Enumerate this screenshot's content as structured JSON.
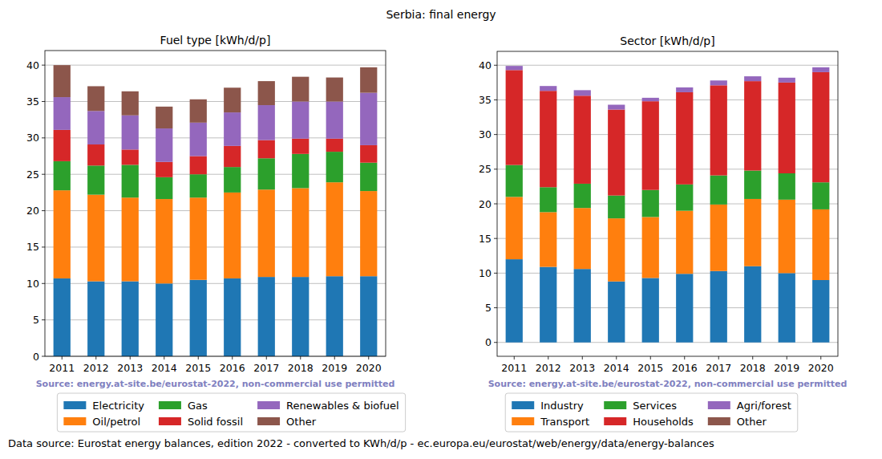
{
  "title": "Serbia: final energy",
  "source": "Data source: Eurostat energy balances, edition 2022 - converted to KWh/d/p - ec.europa.eu/eurostat/web/energy/data/energy-balances",
  "chart_data": [
    {
      "type": "bar",
      "title": "Fuel type [kWh/d/p]",
      "annotation": "Source: energy.at-site.be/eurostat-2022, non-commercial use permitted",
      "categories": [
        "2011",
        "2012",
        "2013",
        "2014",
        "2015",
        "2016",
        "2017",
        "2018",
        "2019",
        "2020"
      ],
      "series": [
        {
          "name": "Electricity",
          "color": "#1f77b4",
          "values": [
            10.7,
            10.3,
            10.3,
            10.0,
            10.5,
            10.7,
            10.9,
            10.9,
            11.0,
            11.0
          ]
        },
        {
          "name": "Oil/petrol",
          "color": "#ff7f0e",
          "values": [
            12.1,
            11.9,
            11.5,
            11.6,
            11.3,
            11.8,
            12.0,
            12.2,
            12.9,
            11.7
          ]
        },
        {
          "name": "Gas",
          "color": "#2ca02c",
          "values": [
            4.0,
            4.0,
            4.5,
            3.0,
            3.2,
            3.5,
            4.3,
            4.7,
            4.2,
            3.9
          ]
        },
        {
          "name": "Solid fossil",
          "color": "#d62728",
          "values": [
            4.3,
            2.9,
            2.1,
            2.1,
            2.5,
            2.9,
            2.5,
            2.1,
            1.8,
            2.4
          ]
        },
        {
          "name": "Renewables & biofuel",
          "color": "#9467bd",
          "values": [
            4.5,
            4.6,
            4.7,
            4.6,
            4.6,
            4.6,
            4.8,
            5.1,
            5.1,
            7.2
          ]
        },
        {
          "name": "Other",
          "color": "#8c564b",
          "values": [
            4.4,
            3.4,
            3.3,
            3.0,
            3.2,
            3.4,
            3.3,
            3.4,
            3.3,
            3.5
          ]
        }
      ],
      "ylim": [
        0,
        42
      ],
      "yticks": [
        0,
        5,
        10,
        15,
        20,
        25,
        30,
        35,
        40
      ],
      "grid": true,
      "stacked": true,
      "legend": "bottom"
    },
    {
      "type": "bar",
      "title": "Sector [kWh/d/p]",
      "annotation": "Source: energy.at-site.be/eurostat-2022, non-commercial use permitted",
      "categories": [
        "2011",
        "2012",
        "2013",
        "2014",
        "2015",
        "2016",
        "2017",
        "2018",
        "2019",
        "2020"
      ],
      "series": [
        {
          "name": "Industry",
          "color": "#1f77b4",
          "values": [
            12.0,
            10.9,
            10.6,
            8.8,
            9.3,
            9.9,
            10.3,
            11.0,
            10.0,
            9.0
          ]
        },
        {
          "name": "Transport",
          "color": "#ff7f0e",
          "values": [
            9.0,
            7.9,
            8.8,
            9.1,
            8.8,
            9.1,
            9.6,
            9.7,
            10.6,
            10.2
          ]
        },
        {
          "name": "Services",
          "color": "#2ca02c",
          "values": [
            4.6,
            3.6,
            3.5,
            3.3,
            3.9,
            3.8,
            4.2,
            4.1,
            3.8,
            3.9
          ]
        },
        {
          "name": "Households",
          "color": "#d62728",
          "values": [
            13.7,
            13.9,
            12.7,
            12.4,
            12.8,
            13.3,
            13.0,
            12.9,
            13.1,
            15.9
          ]
        },
        {
          "name": "Agri/forest",
          "color": "#9467bd",
          "values": [
            0.6,
            0.7,
            0.8,
            0.7,
            0.5,
            0.7,
            0.7,
            0.7,
            0.7,
            0.7
          ]
        },
        {
          "name": "Other",
          "color": "#8c564b",
          "values": [
            0,
            0,
            0,
            0,
            0,
            0,
            0,
            0,
            0,
            0
          ]
        }
      ],
      "ylim": [
        -2,
        42
      ],
      "yticks": [
        0,
        5,
        10,
        15,
        20,
        25,
        30,
        35,
        40
      ],
      "grid": true,
      "stacked": true,
      "legend": "bottom"
    }
  ]
}
